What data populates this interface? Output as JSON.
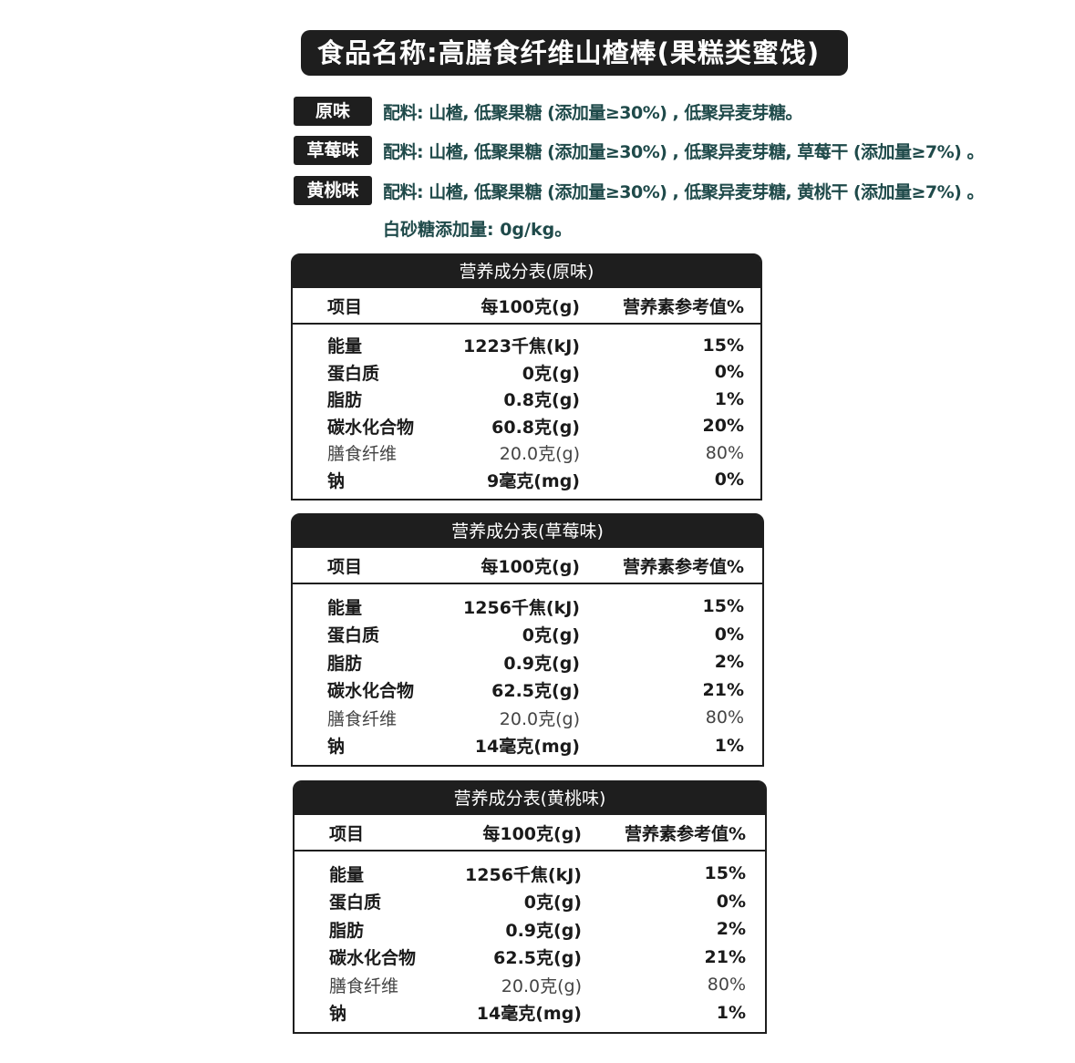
{
  "title": "食品名称:高膳食纤维山楂棒(果糕类蜜饯)",
  "ingredients": [
    {
      "tag": "原味",
      "text": "配料: 山楂, 低聚果糖 (添加量≥30%) , 低聚异麦芽糖。"
    },
    {
      "tag": "草莓味",
      "text": "配料: 山楂, 低聚果糖 (添加量≥30%) , 低聚异麦芽糖, 草莓干 (添加量≥7%) 。"
    },
    {
      "tag": "黄桃味",
      "text": "配料: 山楂, 低聚果糖 (添加量≥30%) , 低聚异麦芽糖, 黄桃干 (添加量≥7%) 。"
    }
  ],
  "sugar_note": "白砂糖添加量: 0g/kg。",
  "tables": [
    {
      "title": "营养成分表(原味)",
      "headers": [
        "项目",
        "每100克(g)",
        "营养素参考值%"
      ],
      "rows": [
        [
          "能量",
          "1223千焦(kJ)",
          "15%"
        ],
        [
          "蛋白质",
          "0克(g)",
          "0%"
        ],
        [
          "脂肪",
          "0.8克(g)",
          "1%"
        ],
        [
          "碳水化合物",
          "60.8克(g)",
          "20%"
        ],
        [
          "膳食纤维",
          "20.0克(g)",
          "80%"
        ],
        [
          "钠",
          "9毫克(mg)",
          "0%"
        ]
      ]
    },
    {
      "title": "营养成分表(草莓味)",
      "headers": [
        "项目",
        "每100克(g)",
        "营养素参考值%"
      ],
      "rows": [
        [
          "能量",
          "1256千焦(kJ)",
          "15%"
        ],
        [
          "蛋白质",
          "0克(g)",
          "0%"
        ],
        [
          "脂肪",
          "0.9克(g)",
          "2%"
        ],
        [
          "碳水化合物",
          "62.5克(g)",
          "21%"
        ],
        [
          "膳食纤维",
          "20.0克(g)",
          "80%"
        ],
        [
          "钠",
          "14毫克(mg)",
          "1%"
        ]
      ]
    },
    {
      "title": "营养成分表(黄桃味)",
      "headers": [
        "项目",
        "每100克(g)",
        "营养素参考值%"
      ],
      "rows": [
        [
          "能量",
          "1256千焦(kJ)",
          "15%"
        ],
        [
          "蛋白质",
          "0克(g)",
          "0%"
        ],
        [
          "脂肪",
          "0.9克(g)",
          "2%"
        ],
        [
          "碳水化合物",
          "62.5克(g)",
          "21%"
        ],
        [
          "膳食纤维",
          "20.0克(g)",
          "80%"
        ],
        [
          "钠",
          "14毫克(mg)",
          "1%"
        ]
      ]
    }
  ]
}
